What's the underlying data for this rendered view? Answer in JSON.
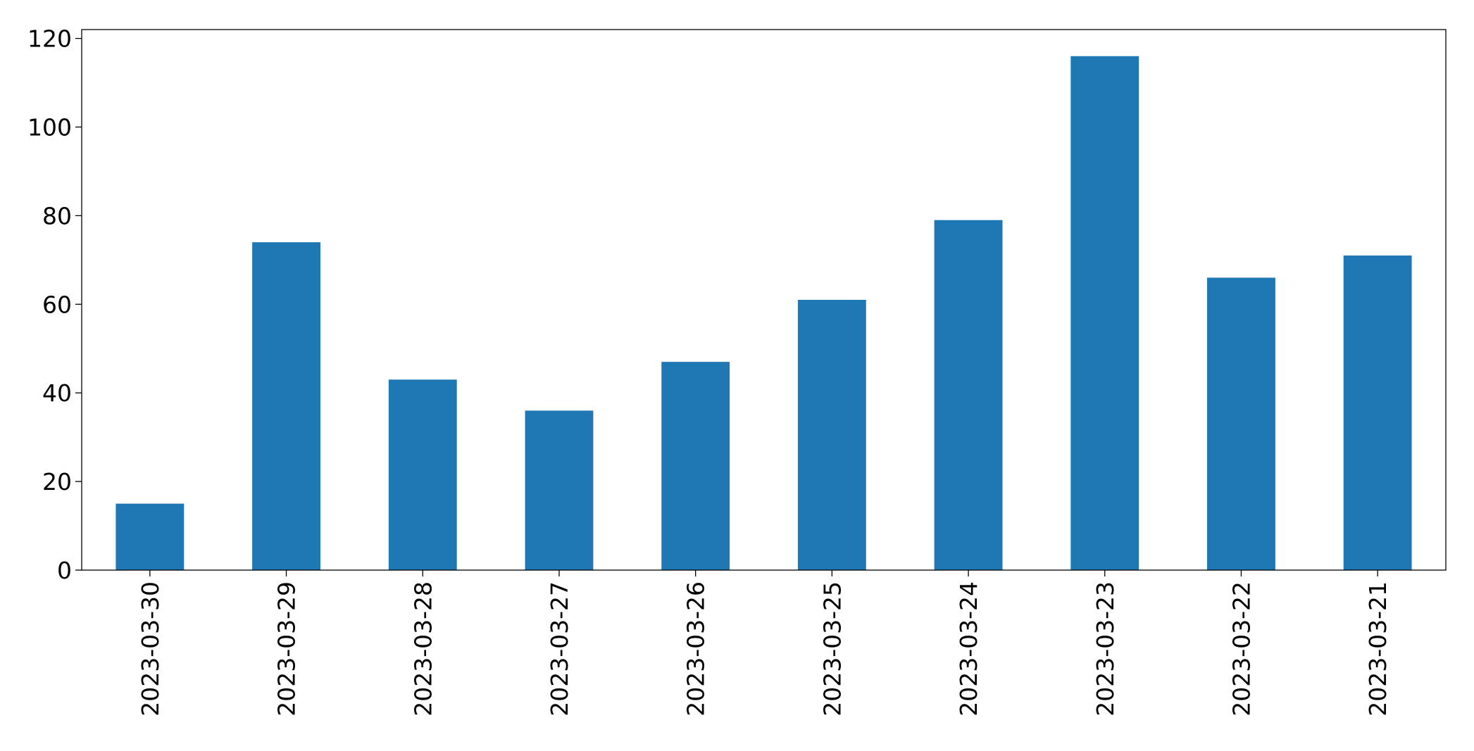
{
  "chart_data": {
    "type": "bar",
    "title": "",
    "xlabel": "",
    "ylabel": "",
    "categories": [
      "2023-03-30",
      "2023-03-29",
      "2023-03-28",
      "2023-03-27",
      "2023-03-26",
      "2023-03-25",
      "2023-03-24",
      "2023-03-23",
      "2023-03-22",
      "2023-03-21"
    ],
    "values": [
      15,
      74,
      43,
      36,
      47,
      61,
      79,
      116,
      66,
      71
    ],
    "ylim": [
      0,
      122
    ],
    "yticks": [
      0,
      20,
      40,
      60,
      80,
      100,
      120
    ],
    "grid": false,
    "legend": "none",
    "bar_color": "#1f77b4"
  }
}
